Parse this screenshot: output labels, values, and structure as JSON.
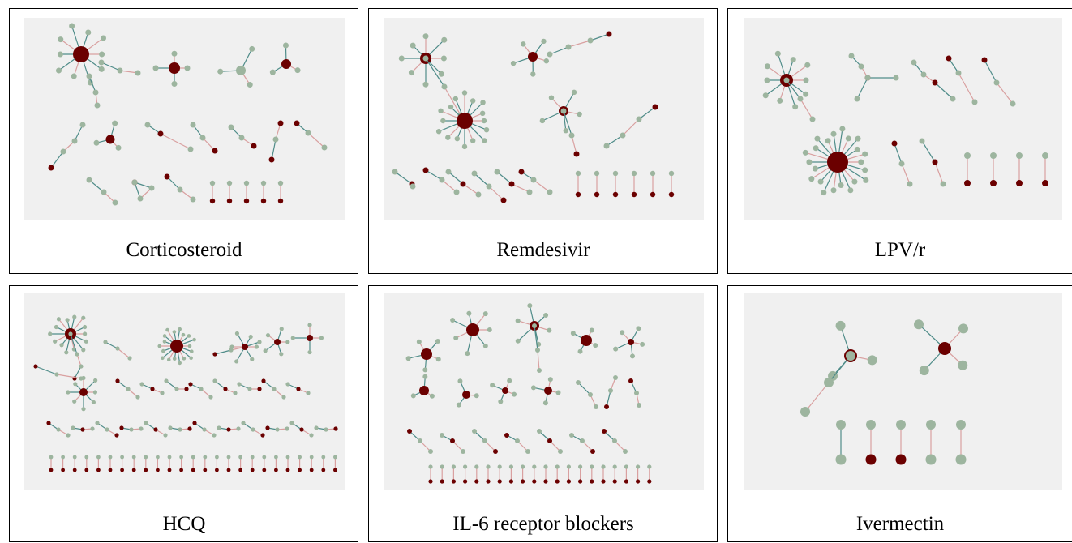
{
  "panels": [
    {
      "caption": "Corticosteroid"
    },
    {
      "caption": "Remdesivir"
    },
    {
      "caption": "LPV/r"
    },
    {
      "caption": "HCQ"
    },
    {
      "caption": "IL-6 receptor blockers"
    },
    {
      "caption": "Ivermectin"
    }
  ]
}
